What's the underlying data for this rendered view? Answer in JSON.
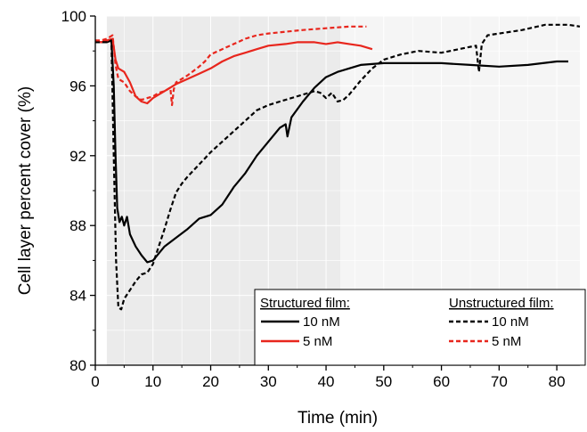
{
  "chart_data": {
    "type": "line",
    "xlabel": "Time (min)",
    "ylabel": "Cell layer percent cover (%)",
    "xlim": [
      0,
      84
    ],
    "ylim": [
      80,
      100
    ],
    "xticks": [
      0,
      10,
      20,
      30,
      40,
      50,
      60,
      70,
      80
    ],
    "yticks": [
      80,
      84,
      88,
      92,
      96,
      100
    ],
    "shaded_regions": [
      {
        "x": [
          2,
          42.5
        ],
        "color": "#ebebeb"
      },
      {
        "x": [
          42.5,
          84
        ],
        "color": "#f5f5f5"
      }
    ],
    "legend": {
      "placement": "bottom-right",
      "groups": [
        {
          "title": "Structured film:",
          "entries": [
            {
              "label": "10 nM",
              "series": 0
            },
            {
              "label": "5 nM",
              "series": 1
            }
          ]
        },
        {
          "title": "Unstructured film:",
          "entries": [
            {
              "label": "10 nM",
              "series": 2
            },
            {
              "label": "5 nM",
              "series": 3
            }
          ]
        }
      ]
    },
    "series": [
      {
        "group": "Structured film",
        "conc": "10 nM",
        "color": "#000000",
        "dash": "solid",
        "points": [
          [
            0,
            98.5
          ],
          [
            1,
            98.5
          ],
          [
            2,
            98.5
          ],
          [
            2.8,
            98.6
          ],
          [
            3.2,
            96
          ],
          [
            3.5,
            92
          ],
          [
            3.8,
            89
          ],
          [
            4.2,
            88.2
          ],
          [
            4.6,
            88.5
          ],
          [
            5,
            88.0
          ],
          [
            5.5,
            88.5
          ],
          [
            6,
            87.5
          ],
          [
            7,
            86.8
          ],
          [
            8,
            86.3
          ],
          [
            9,
            85.9
          ],
          [
            10,
            86.0
          ],
          [
            11,
            86.4
          ],
          [
            12,
            86.8
          ],
          [
            14,
            87.3
          ],
          [
            16,
            87.8
          ],
          [
            18,
            88.4
          ],
          [
            20,
            88.6
          ],
          [
            22,
            89.2
          ],
          [
            24,
            90.2
          ],
          [
            26,
            91.0
          ],
          [
            28,
            92.0
          ],
          [
            30,
            92.8
          ],
          [
            32,
            93.6
          ],
          [
            33,
            93.8
          ],
          [
            33.3,
            93.1
          ],
          [
            34,
            94.2
          ],
          [
            36,
            95.1
          ],
          [
            38,
            95.9
          ],
          [
            40,
            96.5
          ],
          [
            42,
            96.8
          ],
          [
            44,
            97.0
          ],
          [
            46,
            97.2
          ],
          [
            50,
            97.3
          ],
          [
            55,
            97.3
          ],
          [
            60,
            97.3
          ],
          [
            65,
            97.2
          ],
          [
            70,
            97.1
          ],
          [
            75,
            97.2
          ],
          [
            80,
            97.4
          ],
          [
            82,
            97.4
          ]
        ]
      },
      {
        "group": "Structured film",
        "conc": "5 nM",
        "color": "#e8261d",
        "dash": "solid",
        "points": [
          [
            0,
            98.5
          ],
          [
            1,
            98.5
          ],
          [
            2,
            98.6
          ],
          [
            3,
            98.7
          ],
          [
            3.5,
            97.5
          ],
          [
            4,
            97.0
          ],
          [
            5,
            96.8
          ],
          [
            6,
            96.2
          ],
          [
            7,
            95.4
          ],
          [
            8,
            95.1
          ],
          [
            9,
            95.0
          ],
          [
            10,
            95.3
          ],
          [
            11,
            95.5
          ],
          [
            12,
            95.7
          ],
          [
            14,
            96.1
          ],
          [
            16,
            96.4
          ],
          [
            18,
            96.7
          ],
          [
            20,
            97.0
          ],
          [
            22,
            97.4
          ],
          [
            24,
            97.7
          ],
          [
            26,
            97.9
          ],
          [
            28,
            98.1
          ],
          [
            30,
            98.3
          ],
          [
            33,
            98.4
          ],
          [
            35,
            98.5
          ],
          [
            38,
            98.5
          ],
          [
            40,
            98.4
          ],
          [
            42,
            98.5
          ],
          [
            44,
            98.4
          ],
          [
            46,
            98.3
          ],
          [
            48,
            98.1
          ]
        ]
      },
      {
        "group": "Unstructured film",
        "conc": "10 nM",
        "color": "#000000",
        "dash": "dashed",
        "points": [
          [
            0,
            98.5
          ],
          [
            1,
            98.5
          ],
          [
            2,
            98.5
          ],
          [
            2.8,
            98.6
          ],
          [
            3.2,
            92
          ],
          [
            3.6,
            86
          ],
          [
            4,
            83.3
          ],
          [
            4.5,
            83.2
          ],
          [
            5,
            83.8
          ],
          [
            6,
            84.3
          ],
          [
            7,
            84.8
          ],
          [
            8,
            85.2
          ],
          [
            9,
            85.3
          ],
          [
            10,
            85.8
          ],
          [
            11,
            86.8
          ],
          [
            12,
            87.8
          ],
          [
            13,
            88.9
          ],
          [
            14,
            89.9
          ],
          [
            15,
            90.4
          ],
          [
            16,
            90.8
          ],
          [
            18,
            91.5
          ],
          [
            20,
            92.2
          ],
          [
            22,
            92.8
          ],
          [
            24,
            93.4
          ],
          [
            26,
            94.0
          ],
          [
            28,
            94.6
          ],
          [
            30,
            94.9
          ],
          [
            32,
            95.1
          ],
          [
            34,
            95.3
          ],
          [
            36,
            95.5
          ],
          [
            38,
            95.7
          ],
          [
            39,
            95.6
          ],
          [
            40,
            95.3
          ],
          [
            41,
            95.6
          ],
          [
            42,
            95.1
          ],
          [
            43,
            95.2
          ],
          [
            44,
            95.5
          ],
          [
            46,
            96.3
          ],
          [
            48,
            97.0
          ],
          [
            50,
            97.5
          ],
          [
            53,
            97.8
          ],
          [
            56,
            98.0
          ],
          [
            60,
            97.9
          ],
          [
            63,
            98.1
          ],
          [
            66,
            98.3
          ],
          [
            66.5,
            96.8
          ],
          [
            67,
            98.4
          ],
          [
            68,
            98.9
          ],
          [
            70,
            99.0
          ],
          [
            74,
            99.2
          ],
          [
            78,
            99.5
          ],
          [
            82,
            99.5
          ],
          [
            84,
            99.4
          ]
        ]
      },
      {
        "group": "Unstructured film",
        "conc": "5 nM",
        "color": "#e8261d",
        "dash": "dashed",
        "points": [
          [
            0,
            98.6
          ],
          [
            1,
            98.6
          ],
          [
            2,
            98.7
          ],
          [
            3,
            98.9
          ],
          [
            3.5,
            97.2
          ],
          [
            4,
            96.4
          ],
          [
            5,
            96.2
          ],
          [
            6,
            95.7
          ],
          [
            7,
            95.4
          ],
          [
            8,
            95.2
          ],
          [
            9,
            95.3
          ],
          [
            10,
            95.4
          ],
          [
            11,
            95.6
          ],
          [
            12,
            95.7
          ],
          [
            13,
            95.9
          ],
          [
            13.3,
            94.9
          ],
          [
            13.6,
            95.8
          ],
          [
            14,
            96.2
          ],
          [
            15,
            96.4
          ],
          [
            16,
            96.6
          ],
          [
            18,
            97.1
          ],
          [
            19,
            97.4
          ],
          [
            20,
            97.8
          ],
          [
            22,
            98.1
          ],
          [
            24,
            98.4
          ],
          [
            26,
            98.7
          ],
          [
            28,
            98.9
          ],
          [
            30,
            99.0
          ],
          [
            33,
            99.1
          ],
          [
            36,
            99.2
          ],
          [
            40,
            99.3
          ],
          [
            44,
            99.4
          ],
          [
            47,
            99.4
          ]
        ]
      }
    ]
  }
}
